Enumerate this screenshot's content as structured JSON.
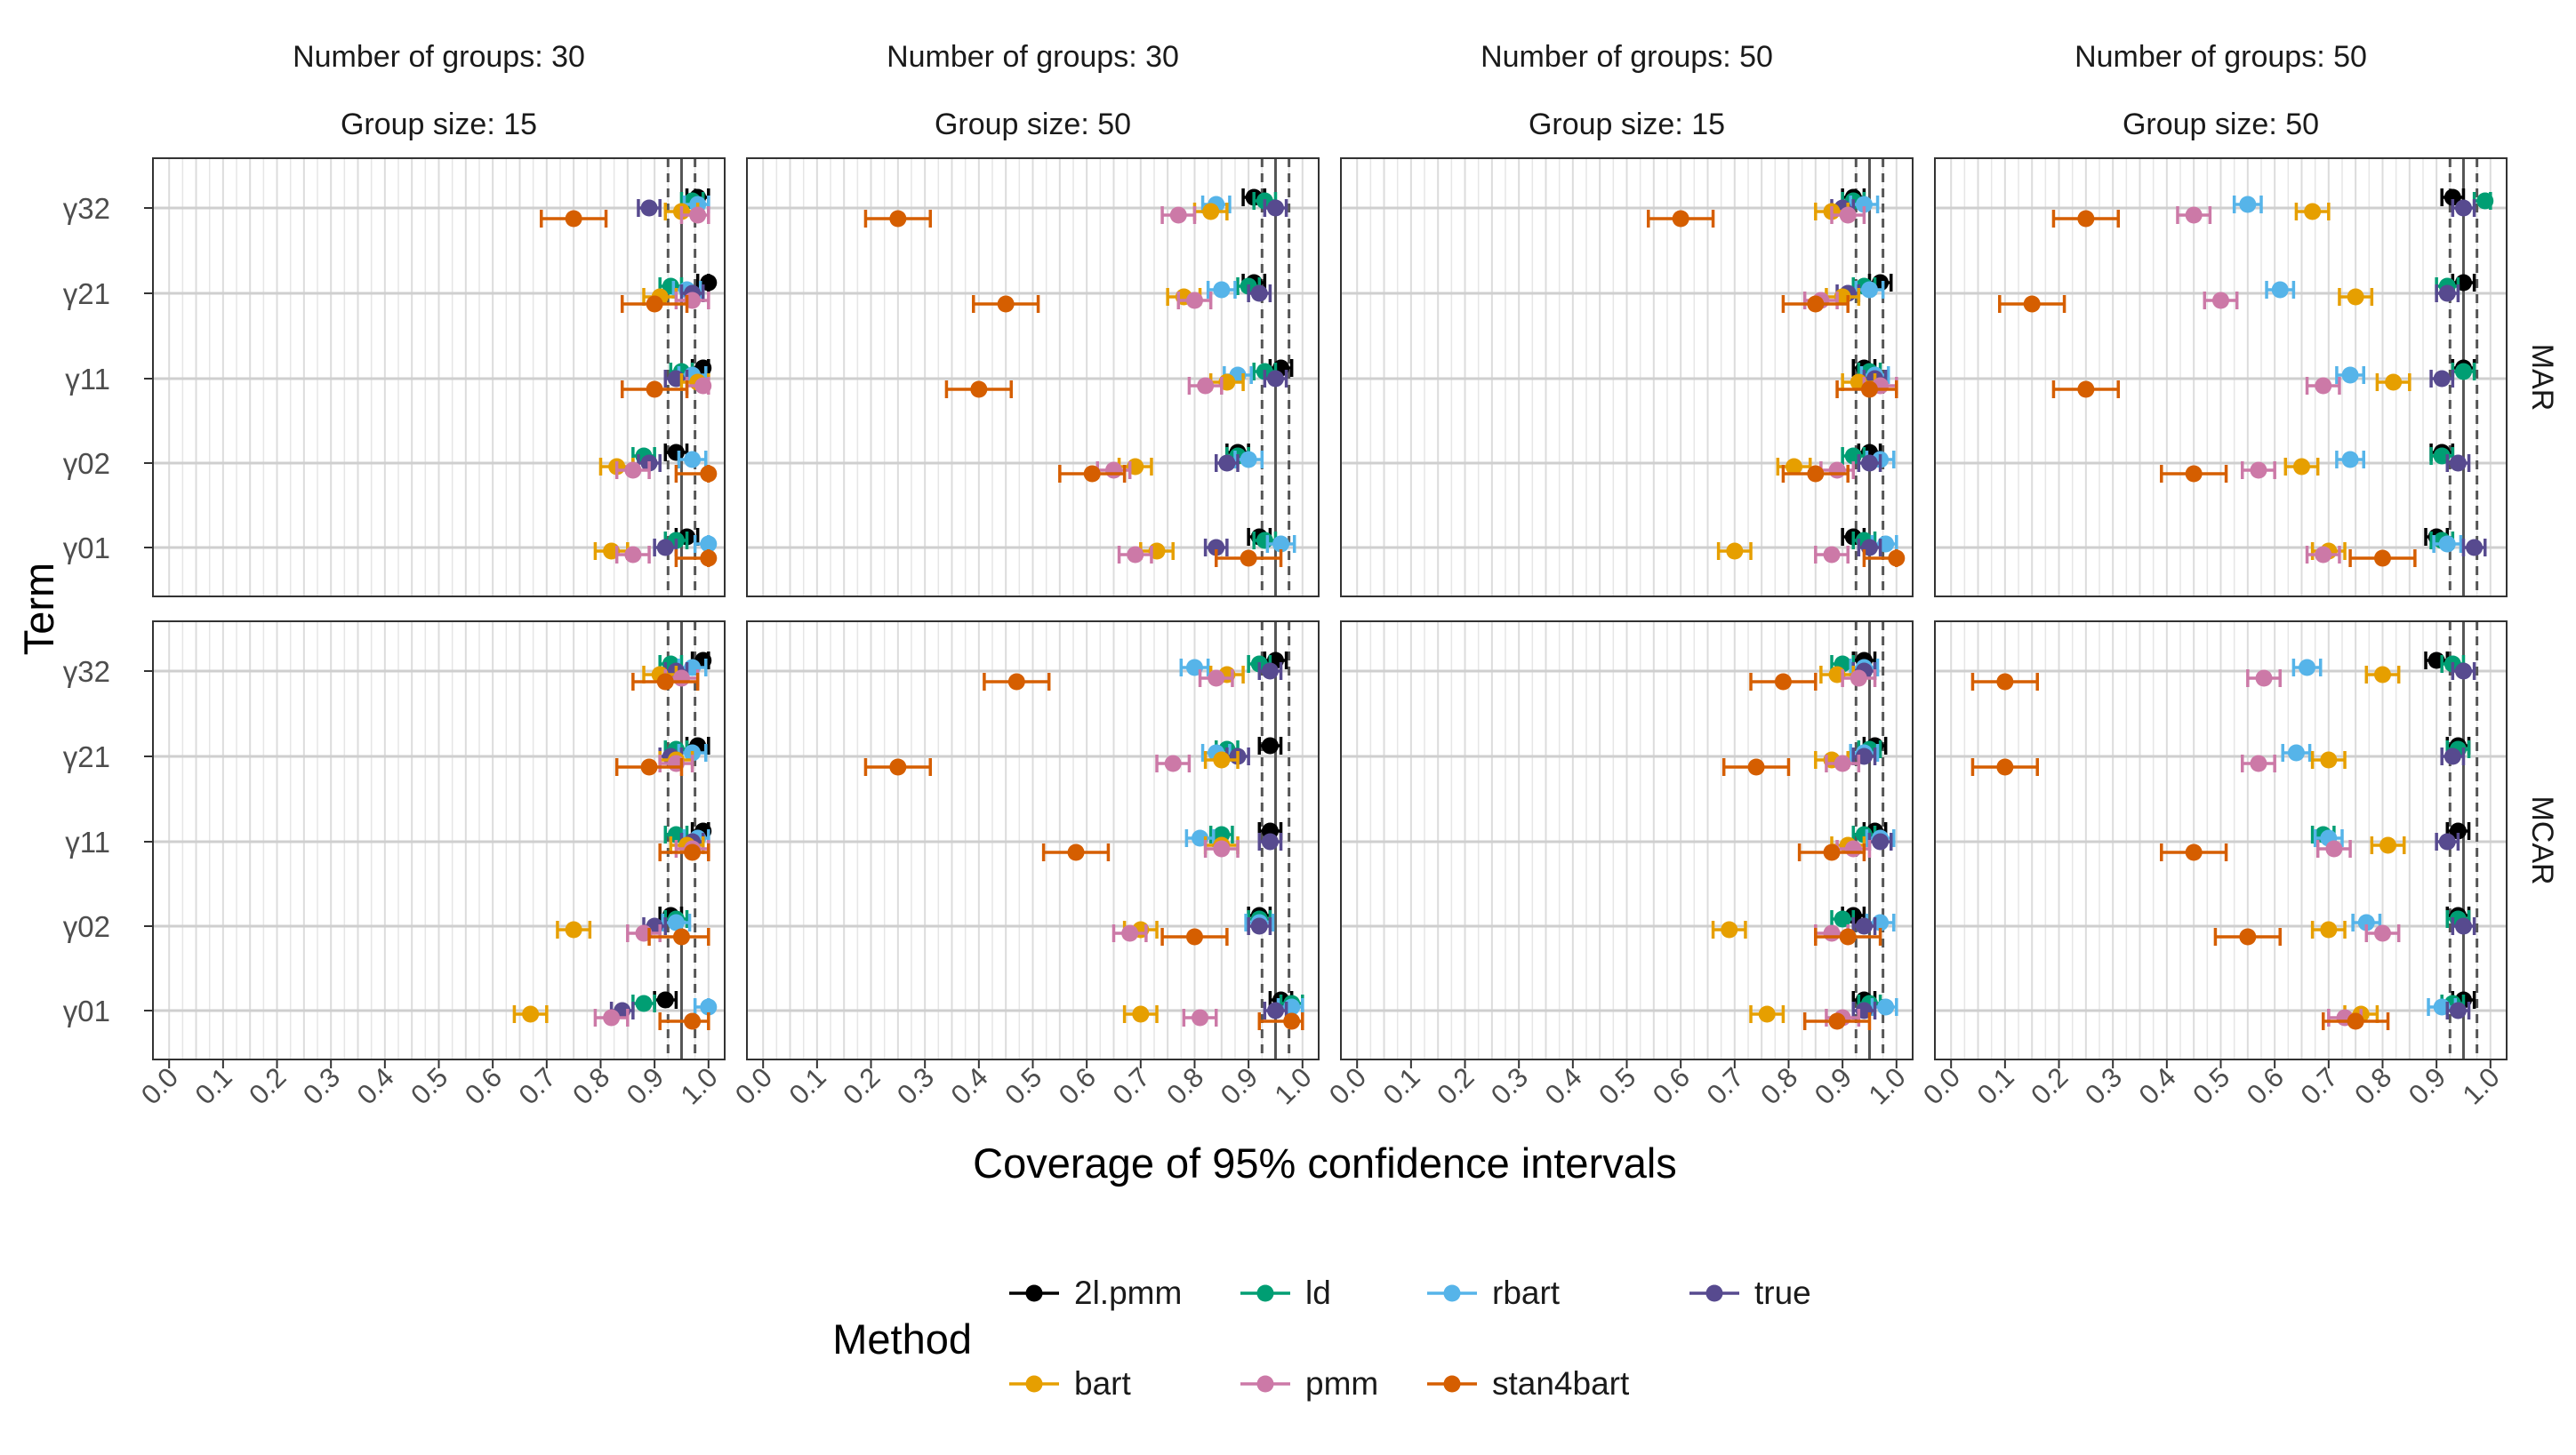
{
  "chart_data": {
    "type": "errorbar",
    "xlabel": "Coverage of 95% confidence intervals",
    "ylabel": "Term",
    "xlim": [
      0.0,
      1.0
    ],
    "xticks": [
      "0.0",
      "0.1",
      "0.2",
      "0.3",
      "0.4",
      "0.5",
      "0.6",
      "0.7",
      "0.8",
      "0.9",
      "1.0"
    ],
    "terms": [
      "γ32",
      "γ21",
      "γ11",
      "γ02",
      "γ01"
    ],
    "methods": [
      "2l.pmm",
      "ld",
      "rbart",
      "true",
      "bart",
      "pmm",
      "stan4bart"
    ],
    "colors": {
      "2l.pmm": "#000000",
      "ld": "#009E73",
      "rbart": "#56B4E9",
      "true": "#574a8f",
      "bart": "#E69F00",
      "pmm": "#CC79A7",
      "stan4bart": "#D55E00"
    },
    "reference_lines": [
      0.925,
      0.95,
      0.975
    ],
    "grid": true,
    "legend": {
      "title": "Method",
      "position": "bottom",
      "rows": [
        [
          "2l.pmm",
          "ld",
          "rbart",
          "true"
        ],
        [
          "bart",
          "pmm",
          "stan4bart"
        ]
      ]
    },
    "strip_top": [
      {
        "line1": "Number of groups: 30",
        "line2": "Group size: 15"
      },
      {
        "line1": "Number of groups: 30",
        "line2": "Group size: 50"
      },
      {
        "line1": "Number of groups: 50",
        "line2": "Group size: 15"
      },
      {
        "line1": "Number of groups: 50",
        "line2": "Group size: 50"
      }
    ],
    "strip_right": [
      "MAR",
      "MCAR"
    ],
    "panels": [
      {
        "row": 0,
        "col": 0,
        "points": {
          "γ32": {
            "2l.pmm": 0.98,
            "ld": 0.97,
            "rbart": 0.98,
            "true": 0.89,
            "bart": 0.95,
            "pmm": 0.98,
            "stan4bart": 0.75
          },
          "γ21": {
            "2l.pmm": 1.0,
            "ld": 0.93,
            "rbart": 0.96,
            "true": 0.97,
            "bart": 0.91,
            "pmm": 0.97,
            "stan4bart": 0.9
          },
          "γ11": {
            "2l.pmm": 0.99,
            "ld": 0.95,
            "rbart": 0.97,
            "true": 0.94,
            "bart": 0.98,
            "pmm": 0.99,
            "stan4bart": 0.9
          },
          "γ02": {
            "2l.pmm": 0.94,
            "ld": 0.88,
            "rbart": 0.97,
            "true": 0.89,
            "bart": 0.83,
            "pmm": 0.86,
            "stan4bart": 1.0
          },
          "γ01": {
            "2l.pmm": 0.96,
            "ld": 0.94,
            "rbart": 1.0,
            "true": 0.92,
            "bart": 0.82,
            "pmm": 0.86,
            "stan4bart": 1.0
          }
        }
      },
      {
        "row": 0,
        "col": 1,
        "points": {
          "γ32": {
            "2l.pmm": 0.91,
            "ld": 0.93,
            "rbart": 0.84,
            "true": 0.95,
            "bart": 0.83,
            "pmm": 0.77,
            "stan4bart": 0.25
          },
          "γ21": {
            "2l.pmm": 0.91,
            "ld": 0.9,
            "rbart": 0.85,
            "true": 0.92,
            "bart": 0.78,
            "pmm": 0.8,
            "stan4bart": 0.45
          },
          "γ11": {
            "2l.pmm": 0.96,
            "ld": 0.93,
            "rbart": 0.88,
            "true": 0.95,
            "bart": 0.86,
            "pmm": 0.82,
            "stan4bart": 0.4
          },
          "γ02": {
            "2l.pmm": 0.88,
            "ld": 0.88,
            "rbart": 0.9,
            "true": 0.86,
            "bart": 0.69,
            "pmm": 0.65,
            "stan4bart": 0.61
          },
          "γ01": {
            "2l.pmm": 0.92,
            "ld": 0.93,
            "rbart": 0.96,
            "true": 0.84,
            "bart": 0.73,
            "pmm": 0.69,
            "stan4bart": 0.9
          }
        }
      },
      {
        "row": 0,
        "col": 2,
        "points": {
          "γ32": {
            "2l.pmm": 0.92,
            "ld": 0.92,
            "rbart": 0.94,
            "true": 0.9,
            "bart": 0.88,
            "pmm": 0.91,
            "stan4bart": 0.6
          },
          "γ21": {
            "2l.pmm": 0.97,
            "ld": 0.94,
            "rbart": 0.95,
            "true": 0.91,
            "bart": 0.9,
            "pmm": 0.86,
            "stan4bart": 0.85
          },
          "γ11": {
            "2l.pmm": 0.94,
            "ld": 0.95,
            "rbart": 0.96,
            "true": 0.96,
            "bart": 0.93,
            "pmm": 0.97,
            "stan4bart": 0.95
          },
          "γ02": {
            "2l.pmm": 0.95,
            "ld": 0.92,
            "rbart": 0.97,
            "true": 0.95,
            "bart": 0.81,
            "pmm": 0.89,
            "stan4bart": 0.85
          },
          "γ01": {
            "2l.pmm": 0.92,
            "ld": 0.94,
            "rbart": 0.98,
            "true": 0.95,
            "bart": 0.7,
            "pmm": 0.88,
            "stan4bart": 1.0
          }
        }
      },
      {
        "row": 0,
        "col": 3,
        "points": {
          "γ32": {
            "2l.pmm": 0.93,
            "ld": 0.99,
            "rbart": 0.55,
            "true": 0.95,
            "bart": 0.67,
            "pmm": 0.45,
            "stan4bart": 0.25
          },
          "γ21": {
            "2l.pmm": 0.95,
            "ld": 0.92,
            "rbart": 0.61,
            "true": 0.92,
            "bart": 0.75,
            "pmm": 0.5,
            "stan4bart": 0.15
          },
          "γ11": {
            "2l.pmm": 0.95,
            "ld": 0.95,
            "rbart": 0.74,
            "true": 0.91,
            "bart": 0.82,
            "pmm": 0.69,
            "stan4bart": 0.25
          },
          "γ02": {
            "2l.pmm": 0.91,
            "ld": 0.91,
            "rbart": 0.74,
            "true": 0.94,
            "bart": 0.65,
            "pmm": 0.57,
            "stan4bart": 0.45
          },
          "γ01": {
            "2l.pmm": 0.9,
            "ld": 0.91,
            "rbart": 0.92,
            "true": 0.97,
            "bart": 0.7,
            "pmm": 0.69,
            "stan4bart": 0.8
          }
        }
      },
      {
        "row": 1,
        "col": 0,
        "points": {
          "γ32": {
            "2l.pmm": 0.99,
            "ld": 0.93,
            "rbart": 0.97,
            "true": 0.94,
            "bart": 0.91,
            "pmm": 0.95,
            "stan4bart": 0.92
          },
          "γ21": {
            "2l.pmm": 0.98,
            "ld": 0.94,
            "rbart": 0.97,
            "true": 0.93,
            "bart": 0.94,
            "pmm": 0.94,
            "stan4bart": 0.89
          },
          "γ11": {
            "2l.pmm": 0.99,
            "ld": 0.94,
            "rbart": 0.98,
            "true": 0.97,
            "bart": 0.96,
            "pmm": 0.97,
            "stan4bart": 0.97
          },
          "γ02": {
            "2l.pmm": 0.93,
            "ld": 0.94,
            "rbart": 0.94,
            "true": 0.9,
            "bart": 0.75,
            "pmm": 0.88,
            "stan4bart": 0.95
          },
          "γ01": {
            "2l.pmm": 0.92,
            "ld": 0.88,
            "rbart": 1.0,
            "true": 0.84,
            "bart": 0.67,
            "pmm": 0.82,
            "stan4bart": 0.97
          }
        }
      },
      {
        "row": 1,
        "col": 1,
        "points": {
          "γ32": {
            "2l.pmm": 0.95,
            "ld": 0.92,
            "rbart": 0.8,
            "true": 0.94,
            "bart": 0.86,
            "pmm": 0.84,
            "stan4bart": 0.47
          },
          "γ21": {
            "2l.pmm": 0.94,
            "ld": 0.86,
            "rbart": 0.84,
            "true": 0.88,
            "bart": 0.85,
            "pmm": 0.76,
            "stan4bart": 0.25
          },
          "γ11": {
            "2l.pmm": 0.94,
            "ld": 0.85,
            "rbart": 0.81,
            "true": 0.94,
            "bart": 0.85,
            "pmm": 0.85,
            "stan4bart": 0.58
          },
          "γ02": {
            "2l.pmm": 0.92,
            "ld": 0.92,
            "rbart": 0.92,
            "true": 0.92,
            "bart": 0.7,
            "pmm": 0.68,
            "stan4bart": 0.8
          },
          "γ01": {
            "2l.pmm": 0.96,
            "ld": 0.98,
            "rbart": 0.98,
            "true": 0.95,
            "bart": 0.7,
            "pmm": 0.81,
            "stan4bart": 0.98
          }
        }
      },
      {
        "row": 1,
        "col": 2,
        "points": {
          "γ32": {
            "2l.pmm": 0.94,
            "ld": 0.9,
            "rbart": 0.94,
            "true": 0.94,
            "bart": 0.89,
            "pmm": 0.93,
            "stan4bart": 0.79
          },
          "γ21": {
            "2l.pmm": 0.96,
            "ld": 0.95,
            "rbart": 0.94,
            "true": 0.94,
            "bart": 0.88,
            "pmm": 0.9,
            "stan4bart": 0.74
          },
          "γ11": {
            "2l.pmm": 0.96,
            "ld": 0.94,
            "rbart": 0.97,
            "true": 0.97,
            "bart": 0.91,
            "pmm": 0.92,
            "stan4bart": 0.88
          },
          "γ02": {
            "2l.pmm": 0.92,
            "ld": 0.9,
            "rbart": 0.97,
            "true": 0.94,
            "bart": 0.69,
            "pmm": 0.88,
            "stan4bart": 0.91
          },
          "γ01": {
            "2l.pmm": 0.94,
            "ld": 0.95,
            "rbart": 0.98,
            "true": 0.94,
            "bart": 0.76,
            "pmm": 0.9,
            "stan4bart": 0.89
          }
        }
      },
      {
        "row": 1,
        "col": 3,
        "points": {
          "γ32": {
            "2l.pmm": 0.9,
            "ld": 0.93,
            "rbart": 0.66,
            "true": 0.95,
            "bart": 0.8,
            "pmm": 0.58,
            "stan4bart": 0.1
          },
          "γ21": {
            "2l.pmm": 0.94,
            "ld": 0.94,
            "rbart": 0.64,
            "true": 0.93,
            "bart": 0.7,
            "pmm": 0.57,
            "stan4bart": 0.1
          },
          "γ11": {
            "2l.pmm": 0.94,
            "ld": 0.69,
            "rbart": 0.7,
            "true": 0.92,
            "bart": 0.81,
            "pmm": 0.71,
            "stan4bart": 0.45
          },
          "γ02": {
            "2l.pmm": 0.94,
            "ld": 0.94,
            "rbart": 0.77,
            "true": 0.95,
            "bart": 0.7,
            "pmm": 0.8,
            "stan4bart": 0.55
          },
          "γ01": {
            "2l.pmm": 0.95,
            "ld": 0.93,
            "rbart": 0.91,
            "true": 0.94,
            "bart": 0.76,
            "pmm": 0.73,
            "stan4bart": 0.75
          }
        }
      }
    ]
  }
}
